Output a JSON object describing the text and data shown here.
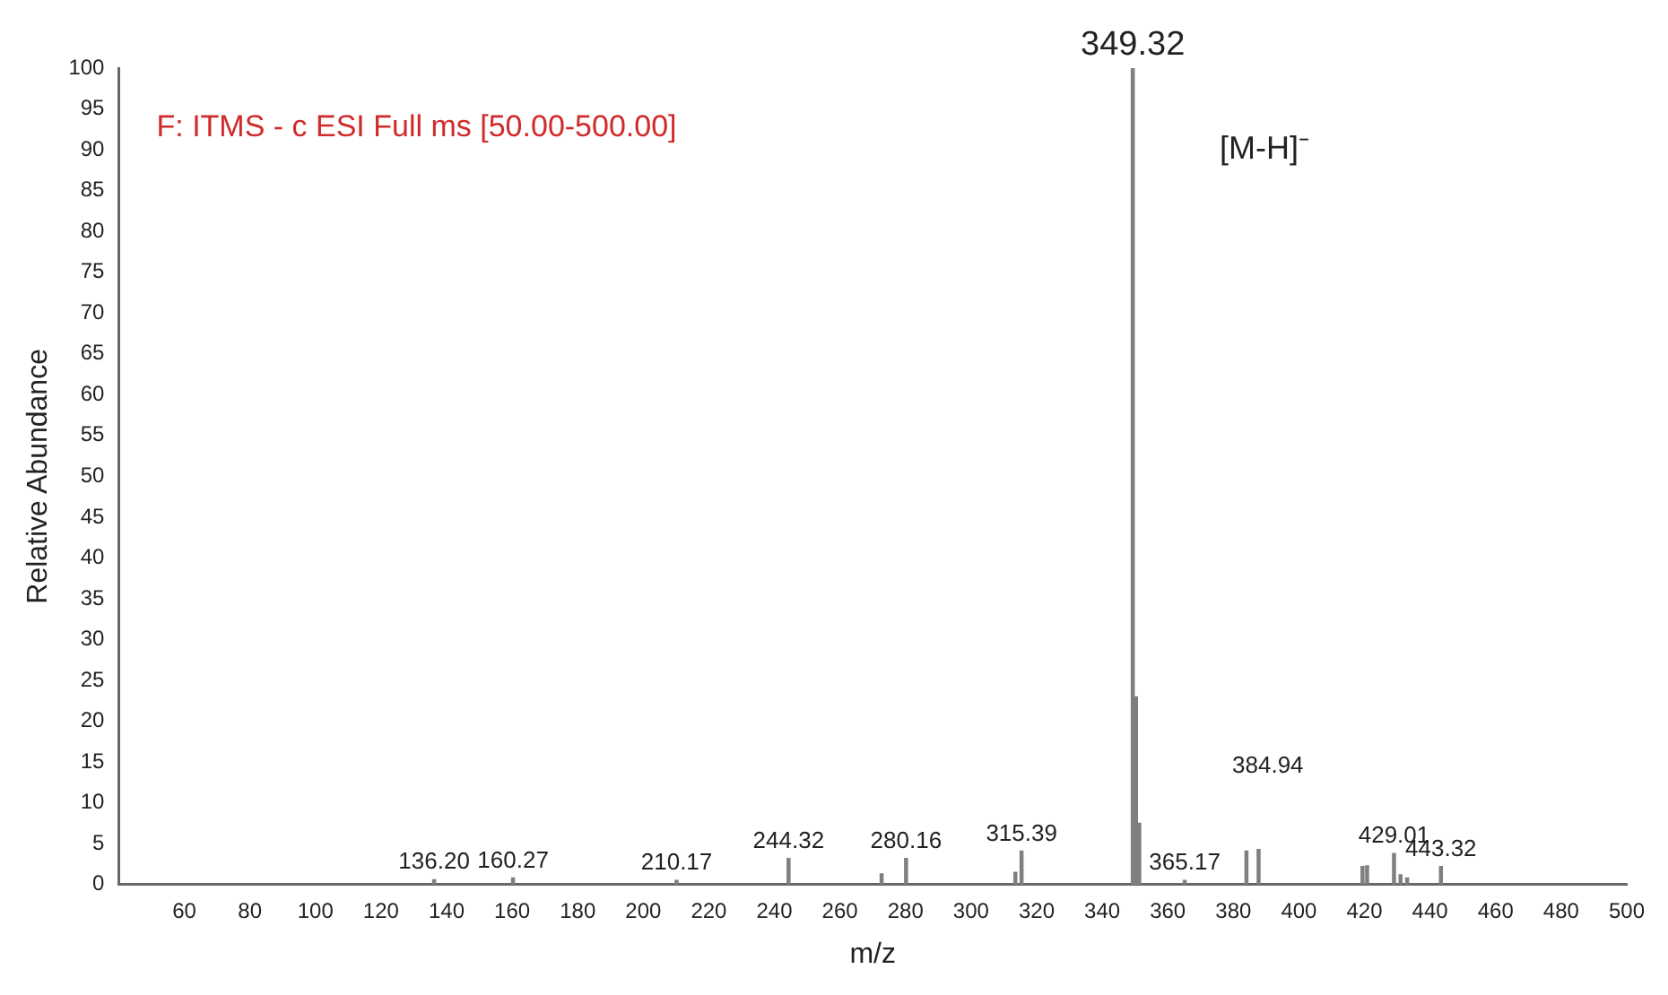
{
  "chart_data": {
    "type": "bar",
    "xlabel": "m/z",
    "ylabel": "Relative Abundance",
    "x": [
      136.2,
      160.27,
      210.17,
      244.32,
      272.7,
      280.16,
      313.5,
      315.39,
      349.32,
      350.3,
      351.3,
      365.17,
      384.0,
      387.7,
      419.4,
      420.8,
      429.01,
      431,
      433,
      443.32
    ],
    "values": [
      0.6,
      0.8,
      0.5,
      3.2,
      1.3,
      3.2,
      1.5,
      4.1,
      100,
      23,
      7.5,
      0.5,
      4.1,
      4.3,
      2.2,
      2.3,
      3.8,
      1.2,
      0.8,
      2.2
    ],
    "color": "#7f7f7f",
    "xlim": [
      40,
      500
    ],
    "xticks": [
      60,
      80,
      100,
      120,
      140,
      160,
      180,
      200,
      220,
      240,
      260,
      280,
      300,
      320,
      340,
      360,
      380,
      400,
      420,
      440,
      460,
      480,
      500
    ],
    "ylim": [
      0,
      100
    ],
    "yticks": [
      0,
      5,
      10,
      15,
      20,
      25,
      30,
      35,
      40,
      45,
      50,
      55,
      60,
      65,
      70,
      75,
      80,
      85,
      90,
      95,
      100
    ],
    "grid": false,
    "legend": false,
    "annotations": [
      "F: ITMS - c ESI Full ms [50.00-500.00]",
      {
        "text": "349.32",
        "x": 349.32,
        "y": 100
      },
      "[M-H]⁻",
      "384.94",
      {
        "text": "136.20",
        "x": 136.2,
        "y": 0.6
      },
      {
        "text": "160.27",
        "x": 160.27,
        "y": 0.8
      },
      {
        "text": "210.17",
        "x": 210.17,
        "y": 0.5
      },
      {
        "text": "244.32",
        "x": 244.32,
        "y": 3.2
      },
      {
        "text": "280.16",
        "x": 280.16,
        "y": 3.2
      },
      {
        "text": "315.39",
        "x": 315.39,
        "y": 4.1
      },
      {
        "text": "365.17",
        "x": 365.17,
        "y": 0.5
      },
      {
        "text": "429.01",
        "x": 429.01,
        "y": 3.8
      },
      {
        "text": "443.32",
        "x": 443.32,
        "y": 2.2
      }
    ]
  }
}
